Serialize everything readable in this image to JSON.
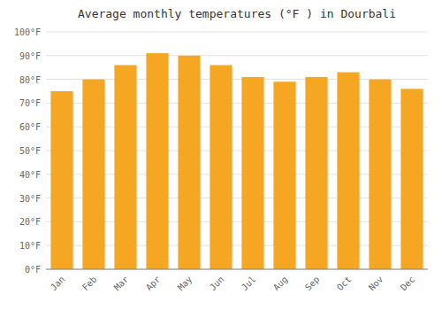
{
  "chart_data": {
    "type": "bar",
    "title": "Average monthly temperatures (°F ) in Dourbali",
    "categories": [
      "Jan",
      "Feb",
      "Mar",
      "Apr",
      "May",
      "Jun",
      "Jul",
      "Aug",
      "Sep",
      "Oct",
      "Nov",
      "Dec"
    ],
    "values": [
      75,
      80,
      86,
      91,
      90,
      86,
      81,
      79,
      81,
      83,
      80,
      76
    ],
    "color": "#F5A623",
    "ylim": [
      0,
      100
    ],
    "yticks": [
      {
        "value": 0,
        "label": "0°F"
      },
      {
        "value": 10,
        "label": "10°F"
      },
      {
        "value": 20,
        "label": "20°F"
      },
      {
        "value": 30,
        "label": "30°F"
      },
      {
        "value": 40,
        "label": "40°F"
      },
      {
        "value": 50,
        "label": "50°F"
      },
      {
        "value": 60,
        "label": "60°F"
      },
      {
        "value": 70,
        "label": "70°F"
      },
      {
        "value": 80,
        "label": "80°F"
      },
      {
        "value": 90,
        "label": "90°F"
      },
      {
        "value": 100,
        "label": "100°F"
      }
    ],
    "grid": true
  }
}
